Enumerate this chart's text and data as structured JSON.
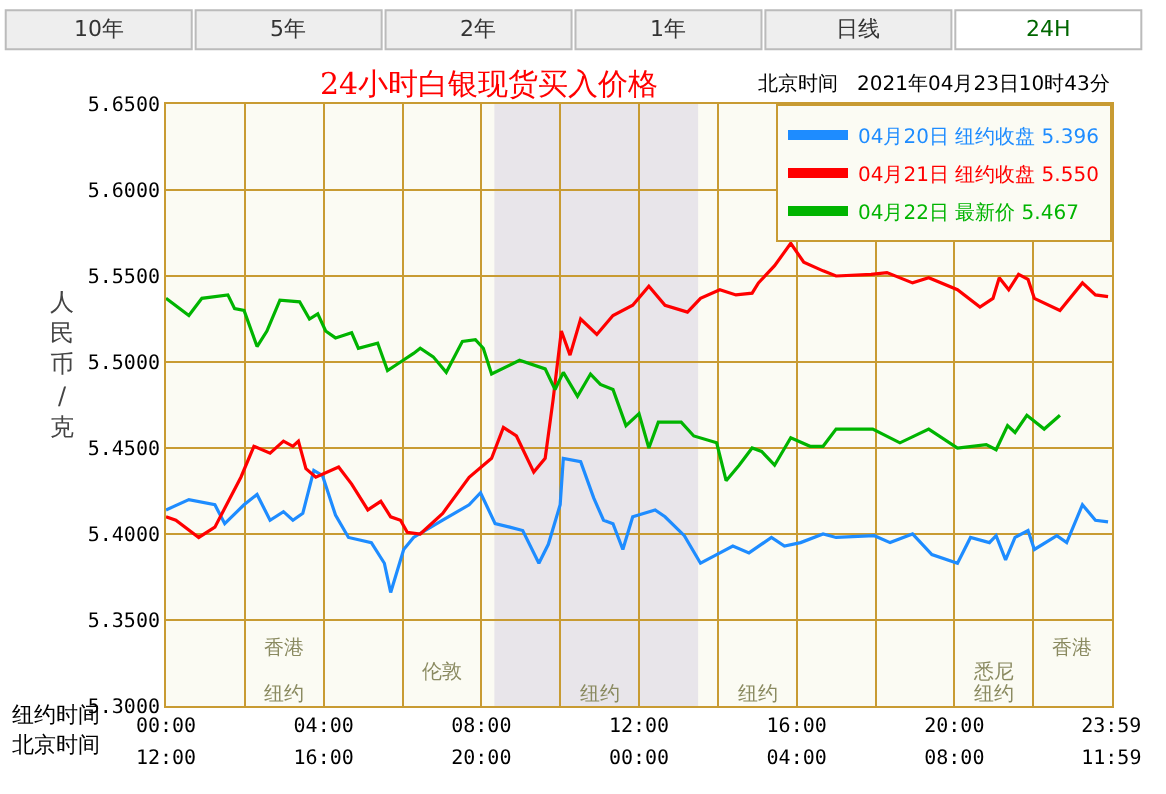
{
  "chart_data": {
    "type": "line",
    "title": "24小时白银现货买入价格",
    "subtitle": "北京时间   2021年04月23日10时43分",
    "ylabel": "人民币/克",
    "xlabel": "纽约时间",
    "x2label": "北京时间",
    "xlim": [
      0,
      24
    ],
    "ylim": [
      5.3,
      5.65
    ],
    "xticks": [
      {
        "value": 0,
        "label": "00:00"
      },
      {
        "value": 2,
        "label": null
      },
      {
        "value": 4,
        "label": "04:00"
      },
      {
        "value": 6,
        "label": null
      },
      {
        "value": 8,
        "label": "08:00"
      },
      {
        "value": 10,
        "label": null
      },
      {
        "value": 12,
        "label": "12:00"
      },
      {
        "value": 14,
        "label": null
      },
      {
        "value": 16,
        "label": "16:00"
      },
      {
        "value": 18,
        "label": null
      },
      {
        "value": 20,
        "label": "20:00"
      },
      {
        "value": 22,
        "label": null
      },
      {
        "value": 23.98,
        "label": "23:59"
      }
    ],
    "x2lim": [
      "2021-04-22T12:00",
      "2021-04-23T12:00"
    ],
    "x2ticks": [
      {
        "value": "2021-04-22T12:00",
        "label": "12:00"
      },
      {
        "value": "2021-04-22T16:00",
        "label": "16:00"
      },
      {
        "value": "2021-04-22T20:00",
        "label": "20:00"
      },
      {
        "value": "2021-04-23T00:00",
        "label": "00:00"
      },
      {
        "value": "2021-04-23T04:00",
        "label": "04:00"
      },
      {
        "value": "2021-04-23T08:00",
        "label": "08:00"
      },
      {
        "value": "2021-04-23T11:59",
        "label": "11:59"
      }
    ],
    "yticks": [
      {
        "value": 5.3,
        "label": "5.3000"
      },
      {
        "value": 5.35,
        "label": "5.3500"
      },
      {
        "value": 5.4,
        "label": "5.4000"
      },
      {
        "value": 5.45,
        "label": "5.4500"
      },
      {
        "value": 5.5,
        "label": "5.5000"
      },
      {
        "value": 5.55,
        "label": "5.5500"
      },
      {
        "value": 5.6,
        "label": "5.6000"
      },
      {
        "value": 5.65,
        "label": "5.6500"
      }
    ],
    "grid": true,
    "legend": "top right",
    "marker": "none",
    "line_style": "solid",
    "bands": [
      {
        "axis": "x",
        "from": 8.33,
        "to": 13.5,
        "color": "#e8e5ea"
      }
    ],
    "annotations": [
      "10年",
      "5年",
      "2年",
      "1年",
      "日线",
      "24H",
      "香港",
      "伦敦",
      "纽约",
      "纽约",
      "纽约",
      "悉尼",
      "香港",
      "纽约"
    ],
    "series": [
      {
        "name": "04月20日 纽约收盘 5.396",
        "color": "#1e8cff",
        "x": [
          0,
          0.58,
          1.24,
          1.49,
          1.98,
          2.31,
          2.64,
          2.98,
          3.22,
          3.47,
          3.75,
          3.97,
          4.3,
          4.63,
          5.21,
          5.54,
          5.7,
          6.03,
          6.28,
          7.02,
          7.69,
          7.98,
          8.35,
          8.72,
          9.05,
          9.46,
          9.7,
          10.0,
          10.08,
          10.52,
          10.85,
          11.1,
          11.34,
          11.59,
          11.84,
          12.41,
          12.66,
          13.15,
          13.56,
          13.97,
          14.38,
          14.79,
          15.36,
          15.69,
          16.1,
          16.67,
          17.0,
          17.97,
          18.37,
          18.94,
          19.43,
          20.08,
          20.41,
          20.89,
          21.06,
          21.3,
          21.54,
          21.87,
          22.03,
          22.6,
          22.85,
          23.25,
          23.58,
          23.9
        ],
        "values": [
          5.414,
          5.42,
          5.417,
          5.406,
          5.417,
          5.423,
          5.408,
          5.413,
          5.408,
          5.412,
          5.437,
          5.434,
          5.411,
          5.398,
          5.395,
          5.383,
          5.366,
          5.391,
          5.398,
          5.408,
          5.417,
          5.424,
          5.406,
          5.404,
          5.402,
          5.383,
          5.394,
          5.417,
          5.444,
          5.442,
          5.421,
          5.408,
          5.406,
          5.391,
          5.41,
          5.414,
          5.41,
          5.399,
          5.383,
          5.388,
          5.393,
          5.389,
          5.398,
          5.393,
          5.395,
          5.4,
          5.398,
          5.399,
          5.395,
          5.4,
          5.388,
          5.383,
          5.398,
          5.395,
          5.399,
          5.385,
          5.398,
          5.402,
          5.391,
          5.399,
          5.395,
          5.417,
          5.408,
          5.407
        ]
      },
      {
        "name": "04月21日 纽约收盘 5.550",
        "color": "#ff0000",
        "x": [
          0,
          0.25,
          0.83,
          1.24,
          1.9,
          2.23,
          2.64,
          2.98,
          3.22,
          3.36,
          3.55,
          3.8,
          4.38,
          4.71,
          5.12,
          5.45,
          5.7,
          5.95,
          6.12,
          6.45,
          7.02,
          7.69,
          8.26,
          8.56,
          8.89,
          9.33,
          9.62,
          9.82,
          10.03,
          10.25,
          10.52,
          10.93,
          11.34,
          11.84,
          12.25,
          12.66,
          13.23,
          13.56,
          14.05,
          14.46,
          14.87,
          15.03,
          15.44,
          15.85,
          16.18,
          16.67,
          17.0,
          17.89,
          18.29,
          18.94,
          19.35,
          20.08,
          20.65,
          20.98,
          21.14,
          21.38,
          21.63,
          21.87,
          22.03,
          22.68,
          23.25,
          23.58,
          23.9
        ],
        "values": [
          5.41,
          5.408,
          5.398,
          5.404,
          5.433,
          5.451,
          5.447,
          5.454,
          5.451,
          5.454,
          5.438,
          5.433,
          5.439,
          5.429,
          5.414,
          5.419,
          5.41,
          5.408,
          5.401,
          5.4,
          5.412,
          5.433,
          5.444,
          5.462,
          5.457,
          5.436,
          5.444,
          5.478,
          5.518,
          5.504,
          5.525,
          5.516,
          5.527,
          5.533,
          5.544,
          5.533,
          5.529,
          5.537,
          5.542,
          5.539,
          5.54,
          5.546,
          5.556,
          5.569,
          5.558,
          5.553,
          5.55,
          5.551,
          5.552,
          5.546,
          5.549,
          5.542,
          5.532,
          5.537,
          5.549,
          5.542,
          5.551,
          5.548,
          5.537,
          5.53,
          5.546,
          5.539,
          5.538
        ]
      },
      {
        "name": "04月22日 最新价 5.467",
        "color": "#00b400",
        "x": [
          0,
          0.58,
          0.91,
          1.57,
          1.74,
          1.98,
          2.31,
          2.56,
          2.89,
          3.39,
          3.64,
          3.85,
          4.05,
          4.3,
          4.71,
          4.88,
          5.37,
          5.62,
          5.95,
          6.28,
          6.45,
          6.78,
          7.11,
          7.52,
          7.85,
          8.05,
          8.26,
          8.97,
          9.62,
          9.87,
          10.08,
          10.44,
          10.77,
          11.02,
          11.34,
          11.67,
          12.0,
          12.25,
          12.49,
          13.07,
          13.39,
          13.97,
          14.21,
          14.54,
          14.87,
          15.11,
          15.44,
          15.85,
          16.34,
          16.67,
          17.0,
          17.93,
          18.62,
          19.35,
          20.08,
          20.81,
          21.06,
          21.35,
          21.54,
          21.84,
          22.28,
          22.68
        ],
        "values": [
          5.537,
          5.527,
          5.537,
          5.539,
          5.531,
          5.53,
          5.509,
          5.518,
          5.536,
          5.535,
          5.525,
          5.528,
          5.518,
          5.514,
          5.517,
          5.508,
          5.511,
          5.495,
          5.5,
          5.505,
          5.508,
          5.503,
          5.494,
          5.512,
          5.513,
          5.508,
          5.493,
          5.501,
          5.496,
          5.484,
          5.494,
          5.48,
          5.493,
          5.487,
          5.484,
          5.463,
          5.47,
          5.45,
          5.465,
          5.465,
          5.457,
          5.453,
          5.431,
          5.44,
          5.45,
          5.448,
          5.44,
          5.456,
          5.451,
          5.451,
          5.461,
          5.461,
          5.453,
          5.461,
          5.45,
          5.452,
          5.449,
          5.463,
          5.459,
          5.469,
          5.461,
          5.469
        ]
      }
    ]
  }
}
